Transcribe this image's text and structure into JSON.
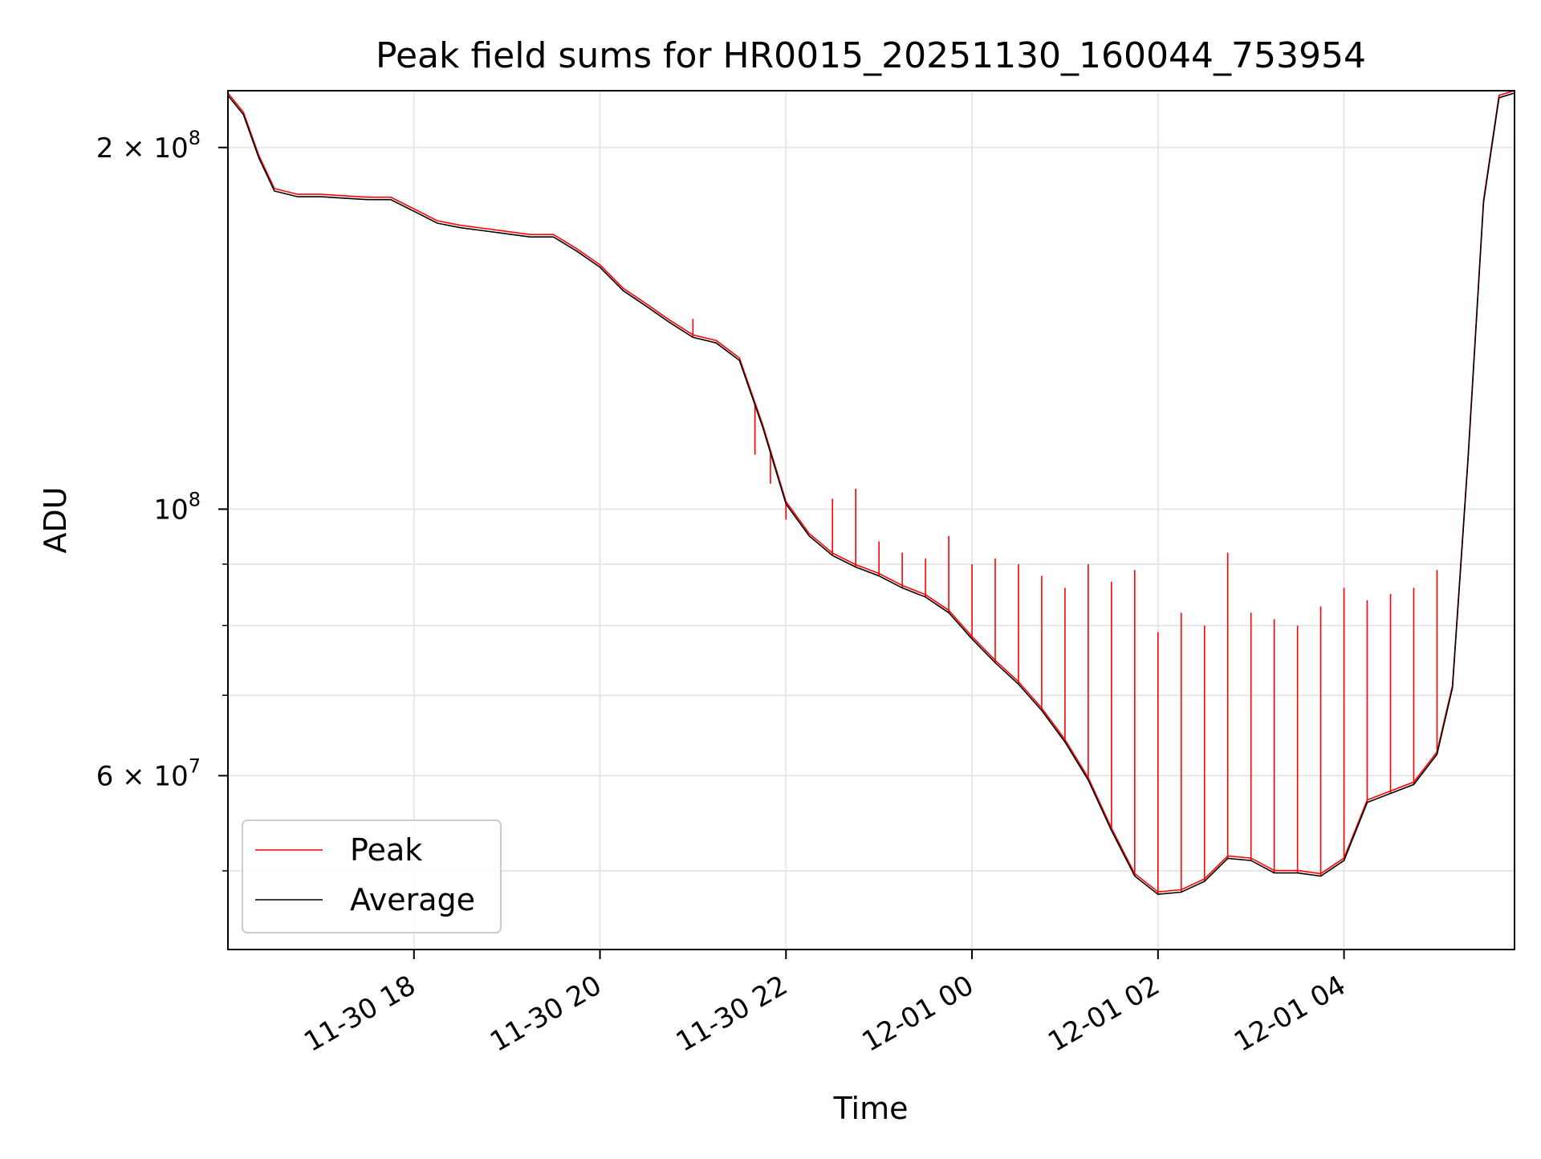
{
  "chart_data": {
    "type": "line",
    "title": "Peak field sums for HR0015_20251130_160044_753954",
    "xlabel": "Time",
    "ylabel": "ADU",
    "y_scale": "log",
    "x_range": [
      "2025-11-30 16:00",
      "2025-12-01 05:50"
    ],
    "ylim": [
      43000000,
      223000000
    ],
    "grid": true,
    "legend_position": "lower-left",
    "x_ticks": [
      {
        "value": "2025-11-30 18:00",
        "label": "11-30 18"
      },
      {
        "value": "2025-11-30 20:00",
        "label": "11-30 20"
      },
      {
        "value": "2025-11-30 22:00",
        "label": "11-30 22"
      },
      {
        "value": "2025-12-01 00:00",
        "label": "12-01 00"
      },
      {
        "value": "2025-12-01 02:00",
        "label": "12-01 02"
      },
      {
        "value": "2025-12-01 04:00",
        "label": "12-01 04"
      }
    ],
    "y_major_ticks": [
      {
        "value": 200000000,
        "mant": "2 × 10",
        "exp": "8"
      },
      {
        "value": 100000000,
        "mant": "10",
        "exp": "8"
      },
      {
        "value": 60000000,
        "mant": "6 × 10",
        "exp": "7"
      }
    ],
    "y_minor_ticks": [
      50000000,
      70000000,
      80000000,
      90000000
    ],
    "series": [
      {
        "name": "Average",
        "color": "#000000",
        "points": [
          [
            "2025-11-30 16:00",
            221000000
          ],
          [
            "2025-11-30 16:10",
            213000000
          ],
          [
            "2025-11-30 16:20",
            196000000
          ],
          [
            "2025-11-30 16:30",
            184000000
          ],
          [
            "2025-11-30 16:45",
            182000000
          ],
          [
            "2025-11-30 17:00",
            182000000
          ],
          [
            "2025-11-30 17:15",
            181500000
          ],
          [
            "2025-11-30 17:30",
            181000000
          ],
          [
            "2025-11-30 17:45",
            181000000
          ],
          [
            "2025-11-30 18:00",
            177000000
          ],
          [
            "2025-11-30 18:15",
            173000000
          ],
          [
            "2025-11-30 18:30",
            171500000
          ],
          [
            "2025-11-30 18:45",
            170500000
          ],
          [
            "2025-11-30 19:00",
            169500000
          ],
          [
            "2025-11-30 19:15",
            168500000
          ],
          [
            "2025-11-30 19:30",
            168500000
          ],
          [
            "2025-11-30 19:45",
            164000000
          ],
          [
            "2025-11-30 20:00",
            159000000
          ],
          [
            "2025-11-30 20:15",
            152000000
          ],
          [
            "2025-11-30 20:30",
            147500000
          ],
          [
            "2025-11-30 20:45",
            143000000
          ],
          [
            "2025-11-30 21:00",
            139000000
          ],
          [
            "2025-11-30 21:15",
            137500000
          ],
          [
            "2025-11-30 21:30",
            133000000
          ],
          [
            "2025-11-30 21:45",
            117000000
          ],
          [
            "2025-11-30 22:00",
            101000000
          ],
          [
            "2025-11-30 22:15",
            95000000
          ],
          [
            "2025-11-30 22:30",
            91500000
          ],
          [
            "2025-11-30 22:45",
            89500000
          ],
          [
            "2025-11-30 23:00",
            88000000
          ],
          [
            "2025-11-30 23:15",
            86000000
          ],
          [
            "2025-11-30 23:30",
            84500000
          ],
          [
            "2025-11-30 23:45",
            82000000
          ],
          [
            "2025-12-01 00:00",
            78000000
          ],
          [
            "2025-12-01 00:15",
            74500000
          ],
          [
            "2025-12-01 00:30",
            71500000
          ],
          [
            "2025-12-01 00:45",
            68000000
          ],
          [
            "2025-12-01 01:00",
            64000000
          ],
          [
            "2025-12-01 01:15",
            59500000
          ],
          [
            "2025-12-01 01:30",
            54000000
          ],
          [
            "2025-12-01 01:45",
            49500000
          ],
          [
            "2025-12-01 02:00",
            47800000
          ],
          [
            "2025-12-01 02:15",
            48000000
          ],
          [
            "2025-12-01 02:30",
            49000000
          ],
          [
            "2025-12-01 02:45",
            51200000
          ],
          [
            "2025-12-01 03:00",
            51000000
          ],
          [
            "2025-12-01 03:15",
            49800000
          ],
          [
            "2025-12-01 03:30",
            49800000
          ],
          [
            "2025-12-01 03:45",
            49500000
          ],
          [
            "2025-12-01 04:00",
            51000000
          ],
          [
            "2025-12-01 04:15",
            57000000
          ],
          [
            "2025-12-01 04:30",
            58000000
          ],
          [
            "2025-12-01 04:45",
            59000000
          ],
          [
            "2025-12-01 05:00",
            62500000
          ],
          [
            "2025-12-01 05:10",
            71000000
          ],
          [
            "2025-12-01 05:20",
            110000000
          ],
          [
            "2025-12-01 05:30",
            180000000
          ],
          [
            "2025-12-01 05:40",
            220000000
          ],
          [
            "2025-12-01 05:50",
            222000000
          ]
        ]
      },
      {
        "name": "Peak",
        "color": "#ff0000",
        "spikes": [
          [
            "2025-11-30 21:00",
            144000000
          ],
          [
            "2025-11-30 21:40",
            111000000
          ],
          [
            "2025-11-30 21:50",
            105000000
          ],
          [
            "2025-11-30 22:00",
            98000000
          ],
          [
            "2025-11-30 22:15",
            95000000
          ],
          [
            "2025-11-30 22:30",
            102000000
          ],
          [
            "2025-11-30 22:45",
            104000000
          ],
          [
            "2025-11-30 23:00",
            94000000
          ],
          [
            "2025-11-30 23:15",
            92000000
          ],
          [
            "2025-11-30 23:30",
            91000000
          ],
          [
            "2025-11-30 23:45",
            95000000
          ],
          [
            "2025-12-01 00:00",
            90000000
          ],
          [
            "2025-12-01 00:15",
            91000000
          ],
          [
            "2025-12-01 00:30",
            90000000
          ],
          [
            "2025-12-01 00:45",
            88000000
          ],
          [
            "2025-12-01 01:00",
            86000000
          ],
          [
            "2025-12-01 01:15",
            90000000
          ],
          [
            "2025-12-01 01:30",
            87000000
          ],
          [
            "2025-12-01 01:45",
            89000000
          ],
          [
            "2025-12-01 02:00",
            79000000
          ],
          [
            "2025-12-01 02:15",
            82000000
          ],
          [
            "2025-12-01 02:30",
            80000000
          ],
          [
            "2025-12-01 02:45",
            92000000
          ],
          [
            "2025-12-01 03:00",
            82000000
          ],
          [
            "2025-12-01 03:15",
            81000000
          ],
          [
            "2025-12-01 03:30",
            80000000
          ],
          [
            "2025-12-01 03:45",
            83000000
          ],
          [
            "2025-12-01 04:00",
            86000000
          ],
          [
            "2025-12-01 04:15",
            84000000
          ],
          [
            "2025-12-01 04:30",
            85000000
          ],
          [
            "2025-12-01 04:45",
            86000000
          ],
          [
            "2025-12-01 05:00",
            89000000
          ]
        ]
      }
    ]
  }
}
